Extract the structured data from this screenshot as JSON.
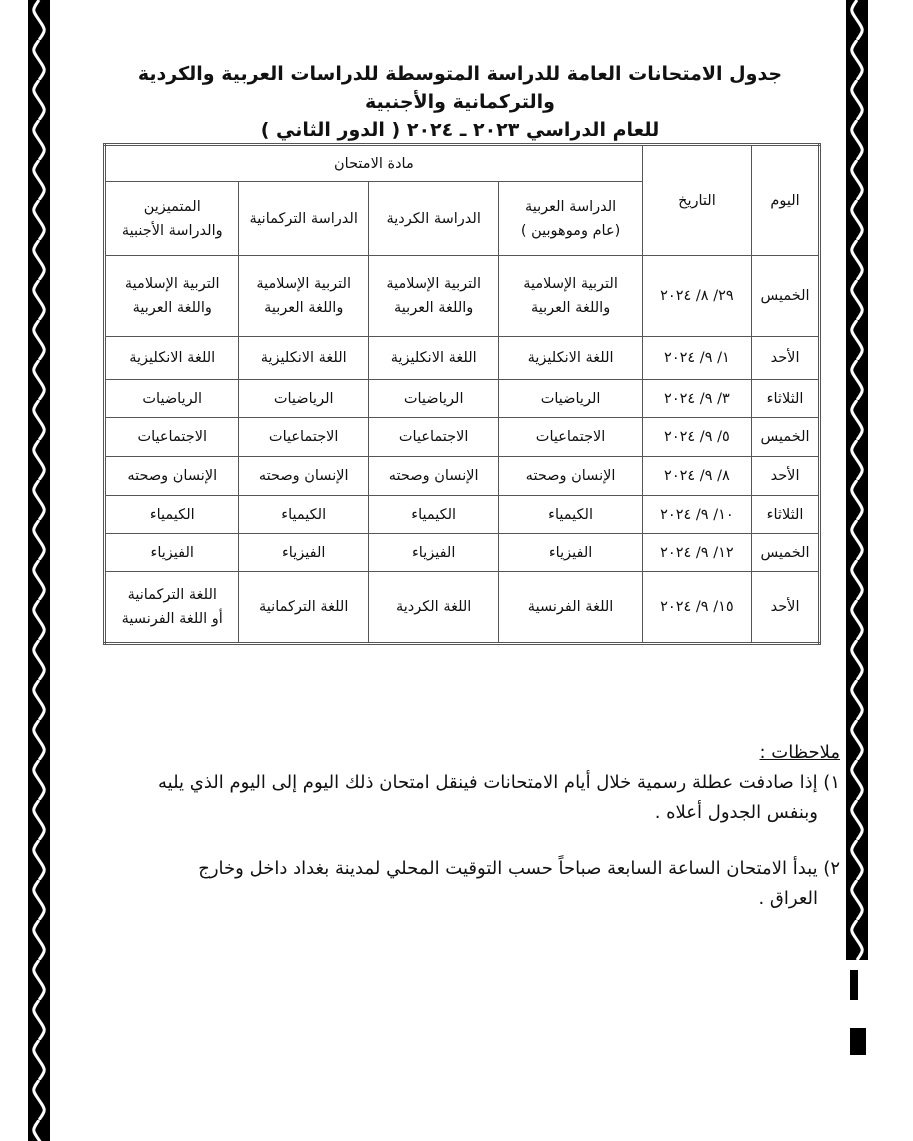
{
  "title_line1": "جدول الامتحانات العامة للدراسة المتوسطة للدراسات العربية والكردية والتركمانية والأجنبية",
  "title_line2": "للعام الدراسي ٢٠٢٣ ـ ٢٠٢٤ ( الدور الثاني )",
  "table": {
    "headers": {
      "day": "اليوم",
      "date": "التاريخ",
      "subject_group": "مادة الامتحان",
      "arabic": [
        "الدراسة العربية",
        "(عام وموهوبين )"
      ],
      "kurdish": "الدراسة الكردية",
      "turkmen": "الدراسة التركمانية",
      "distinguished": [
        "المتميزين",
        "والدراسة الأجنبية"
      ]
    },
    "rows": [
      {
        "day": "الخميس",
        "date": "٢٩/ ٨/ ٢٠٢٤",
        "arabic": [
          "التربية الإسلامية",
          "واللغة العربية"
        ],
        "kurdish": [
          "التربية الإسلامية",
          "واللغة العربية"
        ],
        "turkmen": [
          "التربية الإسلامية",
          "واللغة العربية"
        ],
        "distinguished": [
          "التربية الإسلامية",
          "واللغة العربية"
        ]
      },
      {
        "day": "الأحد",
        "date": "١/ ٩/ ٢٠٢٤",
        "arabic": [
          "اللغة الانكليزية"
        ],
        "kurdish": [
          "اللغة الانكليزية"
        ],
        "turkmen": [
          "اللغة الانكليزية"
        ],
        "distinguished": [
          "اللغة الانكليزية"
        ]
      },
      {
        "day": "الثلاثاء",
        "date": "٣/ ٩/ ٢٠٢٤",
        "arabic": [
          "الرياضيات"
        ],
        "kurdish": [
          "الرياضيات"
        ],
        "turkmen": [
          "الرياضيات"
        ],
        "distinguished": [
          "الرياضيات"
        ]
      },
      {
        "day": "الخميس",
        "date": "٥/ ٩/ ٢٠٢٤",
        "arabic": [
          "الاجتماعيات"
        ],
        "kurdish": [
          "الاجتماعيات"
        ],
        "turkmen": [
          "الاجتماعيات"
        ],
        "distinguished": [
          "الاجتماعيات"
        ]
      },
      {
        "day": "الأحد",
        "date": "٨/ ٩/ ٢٠٢٤",
        "arabic": [
          "الإنسان وصحته"
        ],
        "kurdish": [
          "الإنسان وصحته"
        ],
        "turkmen": [
          "الإنسان وصحته"
        ],
        "distinguished": [
          "الإنسان وصحته"
        ]
      },
      {
        "day": "الثلاثاء",
        "date": "١٠/ ٩/ ٢٠٢٤",
        "arabic": [
          "الكيمياء"
        ],
        "kurdish": [
          "الكيمياء"
        ],
        "turkmen": [
          "الكيمياء"
        ],
        "distinguished": [
          "الكيمياء"
        ]
      },
      {
        "day": "الخميس",
        "date": "١٢/ ٩/ ٢٠٢٤",
        "arabic": [
          "الفيزياء"
        ],
        "kurdish": [
          "الفيزياء"
        ],
        "turkmen": [
          "الفيزياء"
        ],
        "distinguished": [
          "الفيزياء"
        ]
      },
      {
        "day": "الأحد",
        "date": "١٥/ ٩/ ٢٠٢٤",
        "arabic": [
          "اللغة الفرنسية"
        ],
        "kurdish": [
          "اللغة الكردية"
        ],
        "turkmen": [
          "اللغة التركمانية"
        ],
        "distinguished": [
          "اللغة التركمانية",
          "أو اللغة الفرنسية"
        ]
      }
    ]
  },
  "notes": {
    "title": "ملاحظات :",
    "items": [
      {
        "line1": "١) إذا صادفت عطلة رسمية خلال أيام الامتحانات فينقل امتحان ذلك اليوم إلى اليوم الذي يليه",
        "line2": "وبنفس الجدول أعلاه ."
      },
      {
        "line1": "٢) يبدأ الامتحان الساعة السابعة صباحاً حسب التوقيت المحلي لمدينة بغداد داخل وخارج",
        "line2": "العراق ."
      }
    ]
  }
}
